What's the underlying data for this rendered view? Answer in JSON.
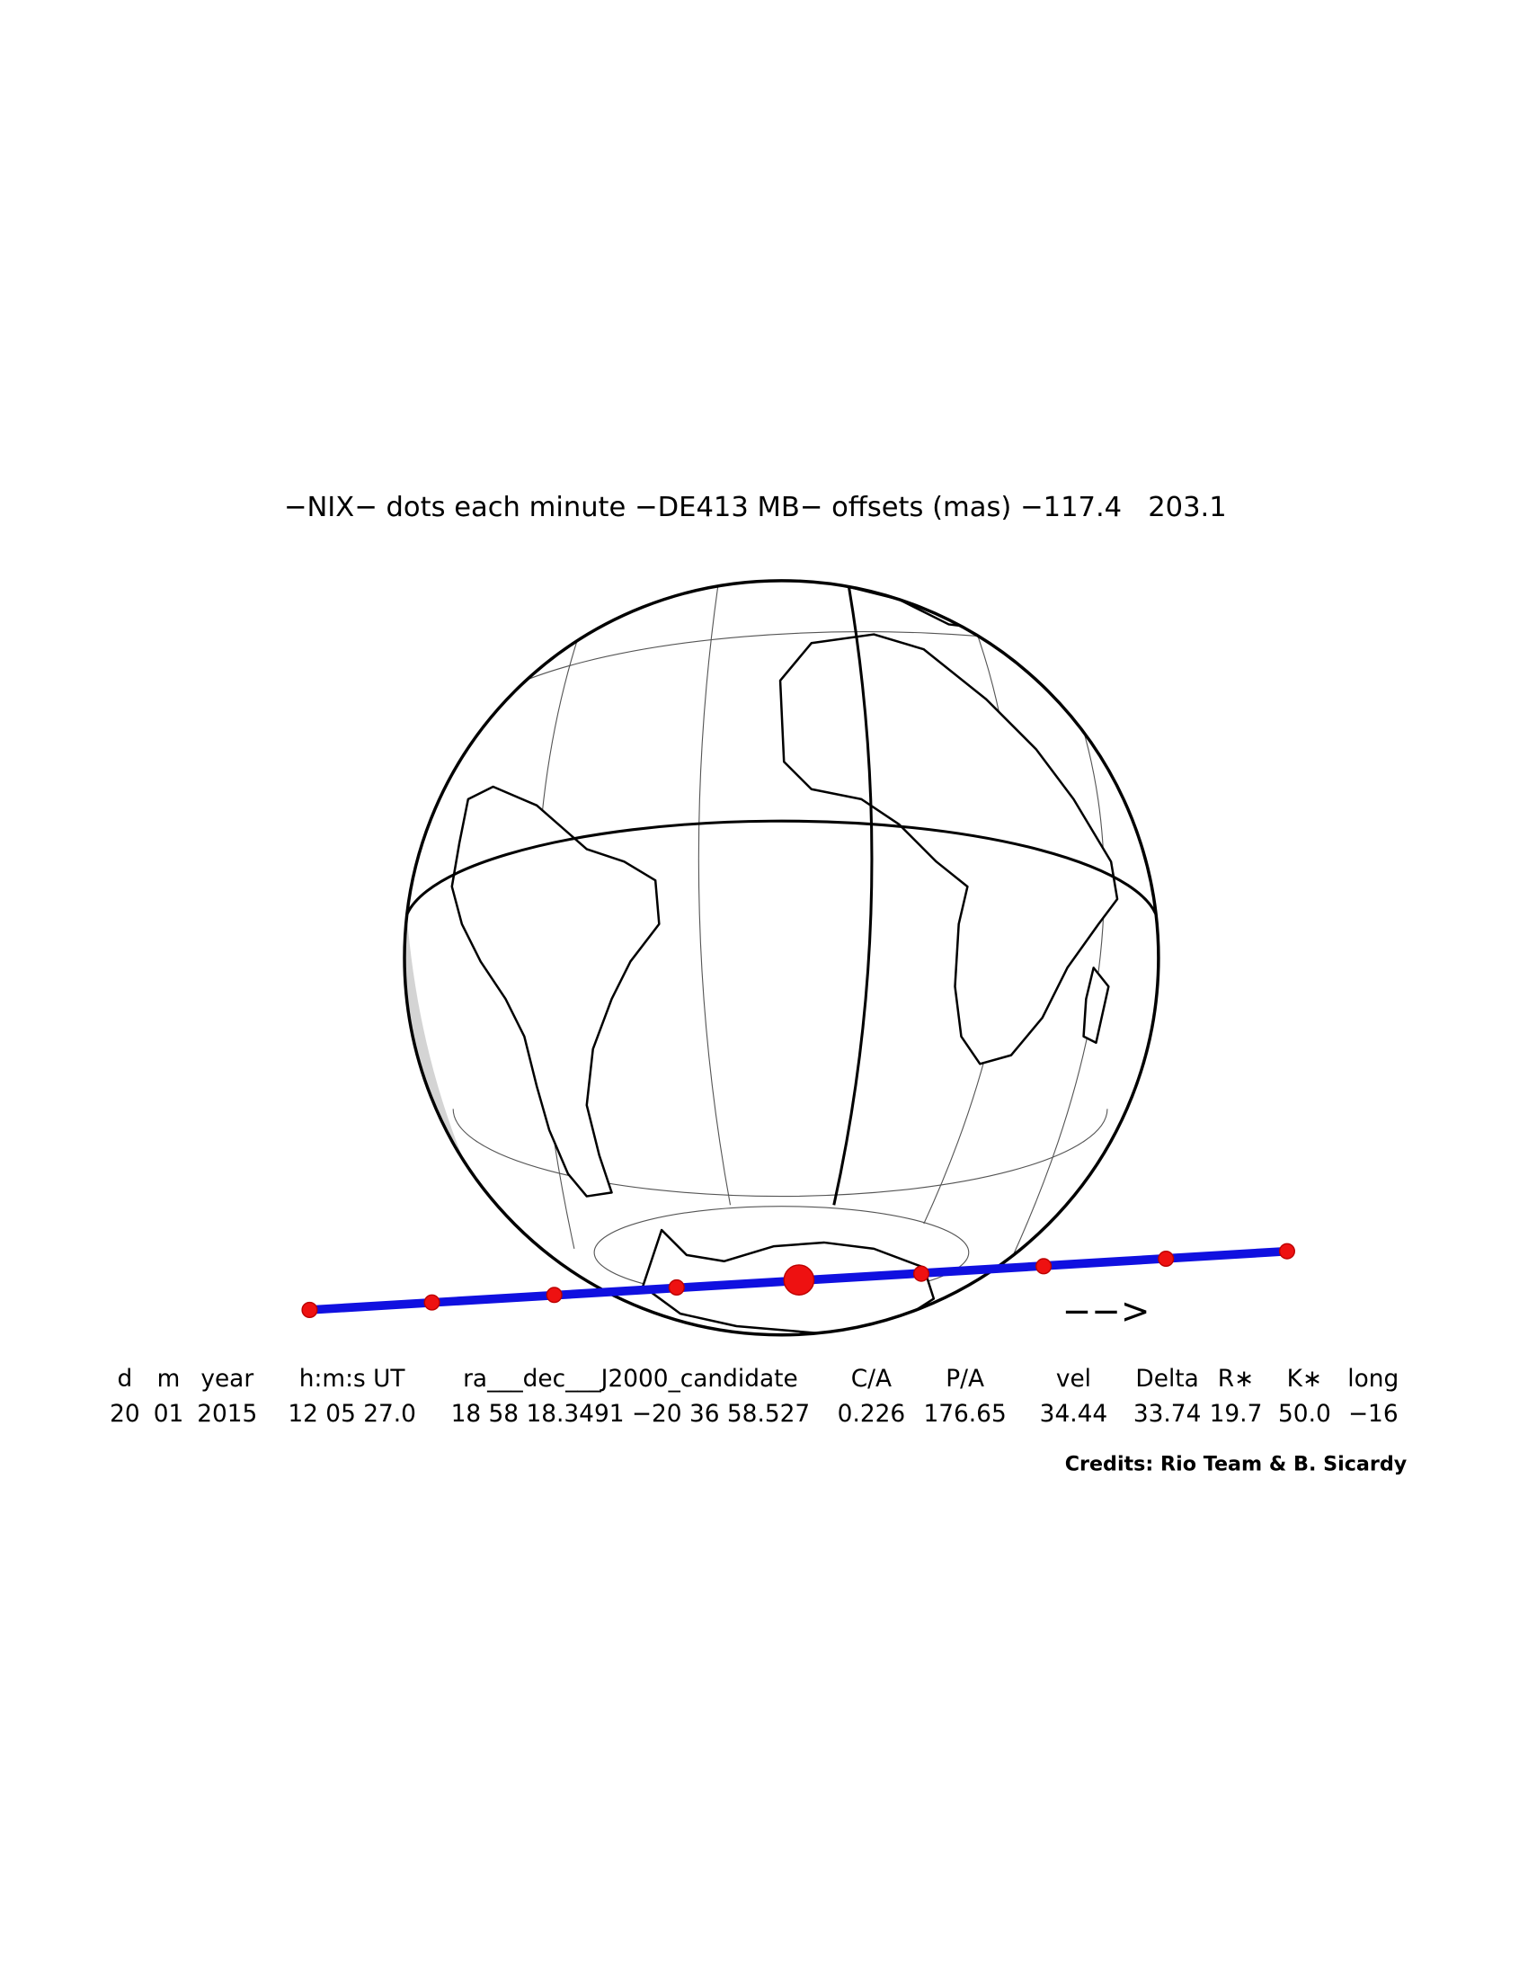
{
  "title": "−NIX− dots each minute −DE413 MB− offsets (mas) −117.4   203.1",
  "table": {
    "headers": [
      "d",
      "m",
      "year",
      "h:m:s UT",
      "ra___dec___J2000_candidate",
      "C/A",
      "P/A",
      "vel",
      "Delta",
      "R∗",
      "K∗",
      "long"
    ],
    "rows": [
      [
        "20",
        "01",
        "2015",
        "12 05 27.0",
        "18 58 18.3491 −20 36 58.527",
        "0.226",
        "176.65",
        "34.44",
        "33.74",
        "19.7",
        "50.0",
        "−16"
      ]
    ]
  },
  "direction_arrow": "−−>",
  "credits": "Credits: Rio Team & B. Sicardy"
}
